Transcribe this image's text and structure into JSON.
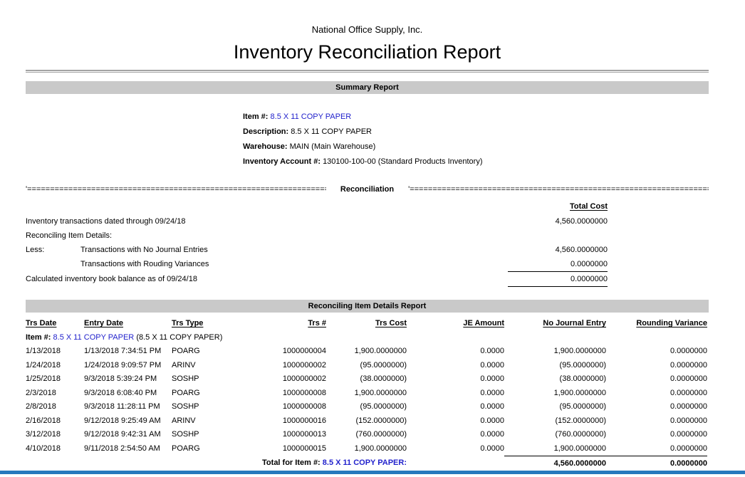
{
  "colors": {
    "link_blue": "#2222cc",
    "section_bar_gray": "#c9c9c9",
    "bottom_bar_blue": "#2779bd"
  },
  "header": {
    "company": "National Office Supply, Inc.",
    "title": "Inventory Reconciliation Report"
  },
  "summary": {
    "bar_label": "Summary Report",
    "item_label": "Item #:",
    "item_value": "8.5 X 11 COPY PAPER",
    "description_label": "Description:",
    "description_value": "8.5 X 11 COPY PAPER",
    "warehouse_label": "Warehouse:",
    "warehouse_value": "MAIN (Main Warehouse)",
    "account_label": "Inventory Account #:",
    "account_value": "130100-100-00 (Standard Products Inventory)"
  },
  "reconciliation": {
    "divider_left": "'==============================================================================",
    "divider_title": "Reconciliation",
    "divider_right": "'==============================================================================",
    "total_cost_header": "Total Cost",
    "rows": [
      {
        "label": "Inventory transactions dated through 09/24/18",
        "value": "4,560.0000000"
      },
      {
        "label": "Reconciling Item Details:"
      },
      {
        "label": "Less:",
        "sub": "Transactions with No Journal Entries",
        "value": "4,560.0000000"
      },
      {
        "sub": "Transactions with Rouding Variances",
        "value": "0.0000000"
      },
      {
        "label": "Calculated inventory book balance as of 09/24/18",
        "value": "0.0000000"
      }
    ]
  },
  "details": {
    "bar_label": "Reconciling Item Details Report",
    "columns": [
      "Trs Date",
      "Entry Date",
      "Trs Type",
      "Trs #",
      "Trs Cost",
      "JE Amount",
      "No Journal Entry",
      "Rounding Variance"
    ],
    "item_label": "Item #:",
    "item_value": "8.5 X 11 COPY PAPER",
    "item_suffix": "(8.5 X 11 COPY PAPER)",
    "rows": [
      [
        "1/13/2018",
        "1/13/2018 7:34:51 PM",
        "POARG",
        "1000000004",
        "1,900.0000000",
        "0.0000",
        "1,900.0000000",
        "0.0000000"
      ],
      [
        "1/24/2018",
        "1/24/2018 9:09:57 PM",
        "ARINV",
        "1000000002",
        "(95.0000000)",
        "0.0000",
        "(95.0000000)",
        "0.0000000"
      ],
      [
        "1/25/2018",
        "9/3/2018 5:39:24 PM",
        "SOSHP",
        "1000000002",
        "(38.0000000)",
        "0.0000",
        "(38.0000000)",
        "0.0000000"
      ],
      [
        "2/3/2018",
        "9/3/2018 6:08:40 PM",
        "POARG",
        "1000000008",
        "1,900.0000000",
        "0.0000",
        "1,900.0000000",
        "0.0000000"
      ],
      [
        "2/8/2018",
        "9/3/2018 11:28:11 PM",
        "SOSHP",
        "1000000008",
        "(95.0000000)",
        "0.0000",
        "(95.0000000)",
        "0.0000000"
      ],
      [
        "2/16/2018",
        "9/12/2018 9:25:49 AM",
        "ARINV",
        "1000000016",
        "(152.0000000)",
        "0.0000",
        "(152.0000000)",
        "0.0000000"
      ],
      [
        "3/12/2018",
        "9/12/2018 9:42:31 AM",
        "SOSHP",
        "1000000013",
        "(760.0000000)",
        "0.0000",
        "(760.0000000)",
        "0.0000000"
      ],
      [
        "4/10/2018",
        "9/11/2018 2:54:50 AM",
        "POARG",
        "1000000015",
        "1,900.0000000",
        "0.0000",
        "1,900.0000000",
        "0.0000000"
      ]
    ],
    "total": {
      "label": "Total for Item #:",
      "item": "8.5 X 11 COPY PAPER:",
      "no_journal_entry": "4,560.0000000",
      "rounding_variance": "0.0000000"
    }
  }
}
